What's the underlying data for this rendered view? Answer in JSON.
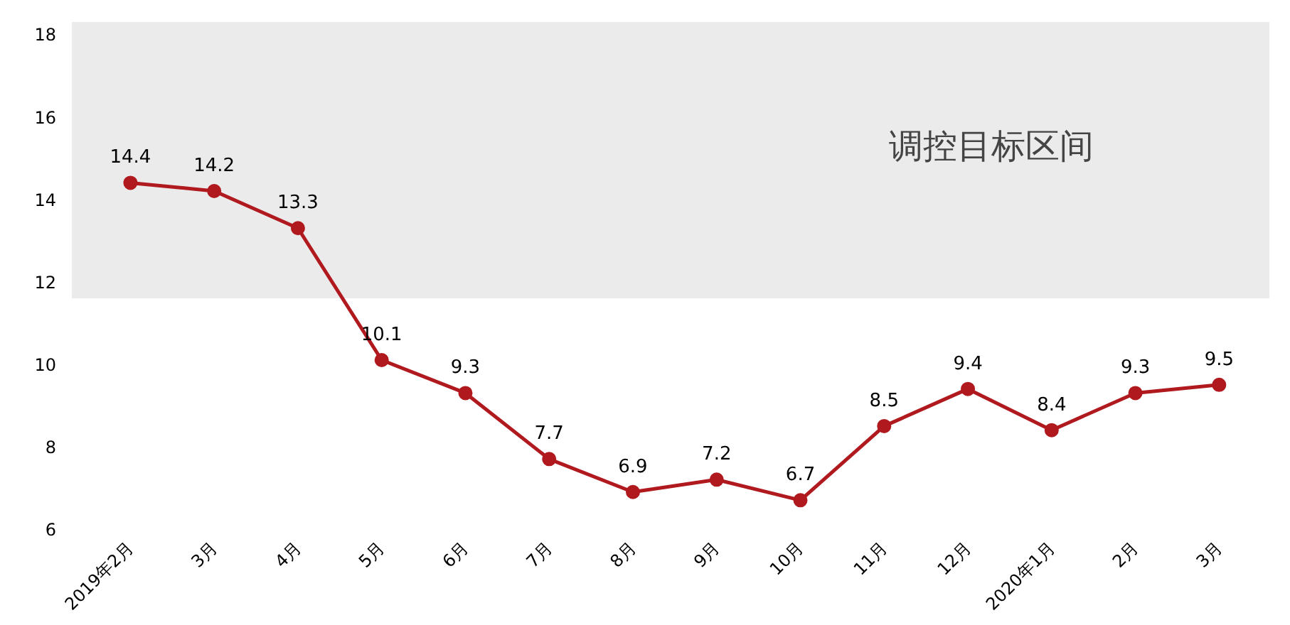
{
  "chart_data": {
    "type": "line",
    "categories": [
      "2019年2月",
      "3月",
      "4月",
      "5月",
      "6月",
      "7月",
      "8月",
      "9月",
      "10月",
      "11月",
      "12月",
      "2020年1月",
      "2月",
      "3月"
    ],
    "series": [
      {
        "color": "#b0191e",
        "values": [
          14.4,
          14.2,
          13.3,
          10.1,
          9.3,
          7.7,
          6.9,
          7.2,
          6.7,
          8.5,
          9.4,
          8.4,
          9.3,
          9.5
        ]
      }
    ],
    "ylim": [
      6,
      18.3
    ],
    "yticks": [
      6,
      8,
      10,
      12,
      14,
      16,
      18
    ],
    "bands": [
      {
        "axis": "y",
        "from": 11.6,
        "to": 18.3,
        "label": "调控目标区间",
        "color": "#ebebeb"
      }
    ],
    "data_labels": true,
    "marker": "circle",
    "grid": false
  }
}
